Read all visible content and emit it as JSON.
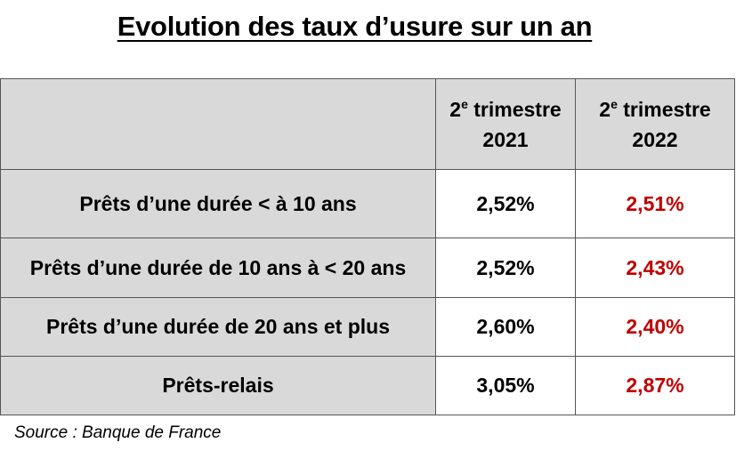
{
  "title": "Evolution des taux d’usure sur un an",
  "table": {
    "headers": [
      {
        "prefix": "2",
        "sup": "e",
        "rest": " trimestre",
        "year": "2021"
      },
      {
        "prefix": "2",
        "sup": "e",
        "rest": " trimestre",
        "year": "2022"
      }
    ],
    "rows": [
      {
        "label": "Prêts d’une durée < à 10 ans",
        "v2021": "2,52%",
        "v2022": "2,51%"
      },
      {
        "label": "Prêts d’une durée de 10 ans à < 20 ans",
        "v2021": "2,52%",
        "v2022": "2,43%"
      },
      {
        "label": "Prêts d’une durée de 20 ans et plus",
        "v2021": "2,60%",
        "v2022": "2,40%"
      },
      {
        "label": "Prêts-relais",
        "v2021": "3,05%",
        "v2022": "2,87%"
      }
    ]
  },
  "source": "Source : Banque de France",
  "colors": {
    "header_bg": "#d9d9d9",
    "highlight_2022": "#c00000",
    "border": "#555555"
  }
}
